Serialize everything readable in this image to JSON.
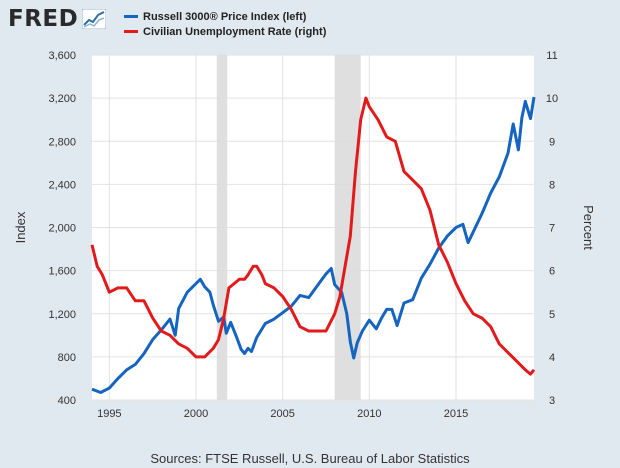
{
  "header": {
    "logo_text": "FRED",
    "logo_icon": "line-chart-icon"
  },
  "legend": [
    {
      "label": "Russell 3000® Price Index (left)",
      "color": "#1565c0"
    },
    {
      "label": "Civilian Unemployment Rate (right)",
      "color": "#e31a1c"
    }
  ],
  "source_note": "Sources: FTSE Russell, U.S. Bureau of Labor Statistics",
  "chart_data": {
    "type": "line",
    "title": "",
    "ylabel_left": "Index",
    "ylabel_right": "Percent",
    "ylim_left": [
      400,
      3600
    ],
    "ylim_right": [
      3,
      11
    ],
    "xlim": [
      1994,
      2019.5
    ],
    "y_ticks_left": [
      "400",
      "800",
      "1,200",
      "1,600",
      "2,000",
      "2,400",
      "2,800",
      "3,200",
      "3,600"
    ],
    "y_ticks_right": [
      "3",
      "4",
      "5",
      "6",
      "7",
      "8",
      "9",
      "10",
      "11"
    ],
    "x_ticks": [
      "1995",
      "2000",
      "2005",
      "2010",
      "2015"
    ],
    "grid": true,
    "recessions": [
      [
        2001.2,
        2001.8
      ],
      [
        2008.0,
        2009.5
      ]
    ],
    "series": [
      {
        "name": "Russell 3000® Price Index (left)",
        "axis": "left",
        "color": "#1565c0",
        "x": [
          1994.0,
          1994.5,
          1995.0,
          1995.5,
          1996.0,
          1996.5,
          1997.0,
          1997.5,
          1998.0,
          1998.5,
          1998.8,
          1999.0,
          1999.5,
          2000.0,
          2000.25,
          2000.5,
          2000.8,
          2001.0,
          2001.3,
          2001.6,
          2001.75,
          2002.0,
          2002.3,
          2002.6,
          2002.8,
          2003.0,
          2003.2,
          2003.5,
          2004.0,
          2004.5,
          2005.0,
          2005.5,
          2006.0,
          2006.5,
          2007.0,
          2007.5,
          2007.8,
          2008.0,
          2008.4,
          2008.7,
          2008.9,
          2009.1,
          2009.3,
          2009.6,
          2010.0,
          2010.4,
          2010.7,
          2011.0,
          2011.3,
          2011.6,
          2012.0,
          2012.5,
          2013.0,
          2013.5,
          2014.0,
          2014.5,
          2015.0,
          2015.4,
          2015.7,
          2016.0,
          2016.5,
          2017.0,
          2017.5,
          2018.0,
          2018.3,
          2018.6,
          2018.8,
          2019.0,
          2019.3,
          2019.5
        ],
        "values": [
          500,
          470,
          510,
          600,
          680,
          730,
          830,
          960,
          1050,
          1150,
          1000,
          1250,
          1400,
          1480,
          1520,
          1450,
          1400,
          1280,
          1130,
          1170,
          1020,
          1120,
          1000,
          870,
          830,
          880,
          850,
          980,
          1110,
          1150,
          1210,
          1270,
          1370,
          1350,
          1460,
          1570,
          1620,
          1470,
          1400,
          1200,
          940,
          790,
          930,
          1040,
          1140,
          1060,
          1160,
          1240,
          1240,
          1090,
          1300,
          1330,
          1530,
          1660,
          1810,
          1920,
          2000,
          2030,
          1860,
          1960,
          2130,
          2320,
          2470,
          2690,
          2960,
          2720,
          3020,
          3170,
          3010,
          3210
        ]
      },
      {
        "name": "Civilian Unemployment Rate (right)",
        "axis": "right",
        "color": "#e31a1c",
        "x": [
          1994.0,
          1994.3,
          1994.6,
          1995.0,
          1995.5,
          1996.0,
          1996.5,
          1997.0,
          1997.5,
          1998.0,
          1998.5,
          1999.0,
          1999.5,
          2000.0,
          2000.5,
          2001.0,
          2001.3,
          2001.6,
          2001.9,
          2002.2,
          2002.5,
          2002.8,
          2003.0,
          2003.3,
          2003.5,
          2003.8,
          2004.0,
          2004.5,
          2005.0,
          2005.5,
          2006.0,
          2006.5,
          2007.0,
          2007.5,
          2008.0,
          2008.3,
          2008.6,
          2008.9,
          2009.2,
          2009.5,
          2009.8,
          2010.0,
          2010.5,
          2011.0,
          2011.5,
          2012.0,
          2012.5,
          2013.0,
          2013.5,
          2014.0,
          2014.5,
          2015.0,
          2015.5,
          2016.0,
          2016.5,
          2017.0,
          2017.5,
          2018.0,
          2018.5,
          2019.0,
          2019.3,
          2019.5
        ],
        "values": [
          6.6,
          6.1,
          5.9,
          5.5,
          5.6,
          5.6,
          5.3,
          5.3,
          4.9,
          4.6,
          4.5,
          4.3,
          4.2,
          4.0,
          4.0,
          4.2,
          4.4,
          4.9,
          5.6,
          5.7,
          5.8,
          5.8,
          5.9,
          6.1,
          6.1,
          5.9,
          5.7,
          5.6,
          5.4,
          5.1,
          4.7,
          4.6,
          4.6,
          4.6,
          5.0,
          5.4,
          6.1,
          6.8,
          8.3,
          9.5,
          10.0,
          9.8,
          9.5,
          9.1,
          9.0,
          8.3,
          8.1,
          7.9,
          7.4,
          6.6,
          6.2,
          5.7,
          5.3,
          5.0,
          4.9,
          4.7,
          4.3,
          4.1,
          3.9,
          3.7,
          3.6,
          3.7
        ]
      }
    ]
  }
}
